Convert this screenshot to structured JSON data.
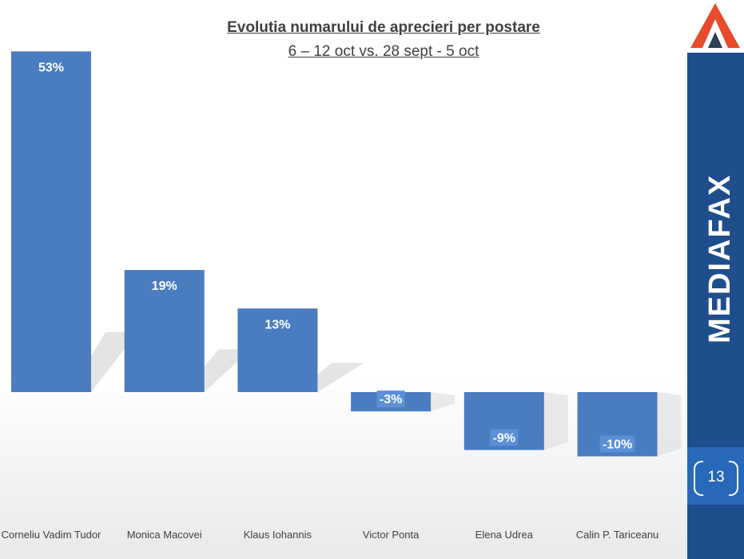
{
  "slide": {
    "brand": "MEDIAFAX",
    "page_number": "13"
  },
  "chart_data": {
    "type": "bar",
    "title": "Evolutia numarului de aprecieri per postare",
    "subtitle": "6 – 12 oct vs. 28 sept - 5 oct",
    "categories": [
      "Corneliu Vadim Tudor",
      "Monica Macovei",
      "Klaus Iohannis",
      "Victor Ponta",
      "Elena Udrea",
      "Calin P. Tariceanu"
    ],
    "values": [
      53,
      19,
      13,
      -3,
      -9,
      -10
    ],
    "data_labels": [
      "53%",
      "19%",
      "13%",
      "-3%",
      "-9%",
      "-10%"
    ],
    "unit": "%",
    "xlabel": "",
    "ylabel": "",
    "grid": false,
    "bar_color": "#4a7cc0",
    "label_bg_color": "#5b8fd6"
  }
}
